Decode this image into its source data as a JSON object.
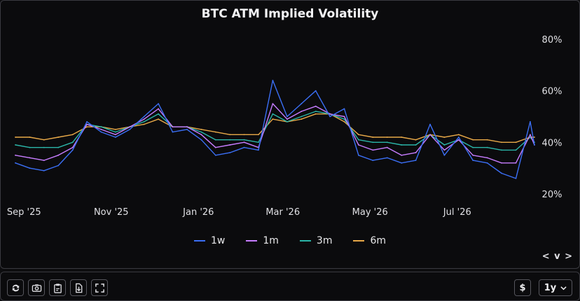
{
  "chart_data": {
    "type": "line",
    "title": "BTC ATM Implied Volatility",
    "xlabel": "",
    "ylabel": "",
    "x_range": [
      "2025-08-26",
      "2026-08-24"
    ],
    "ylim": [
      15,
      85
    ],
    "y_ticks": [
      20,
      40,
      60,
      80
    ],
    "y_tick_labels": [
      "20%",
      "40%",
      "60%",
      "80%"
    ],
    "x_ticks": [
      "2025-09-01",
      "2025-11-01",
      "2026-01-01",
      "2026-03-01",
      "2026-05-01",
      "2026-07-01"
    ],
    "x_tick_labels": [
      "Sep '25",
      "Nov '25",
      "Jan '26",
      "Mar '26",
      "May '26",
      "Jul '26"
    ],
    "legend": "bottom",
    "grid": false,
    "x": [
      "2025-08-26",
      "2025-09-05",
      "2025-09-15",
      "2025-09-25",
      "2025-10-05",
      "2025-10-15",
      "2025-10-25",
      "2025-11-04",
      "2025-11-14",
      "2025-11-24",
      "2025-12-04",
      "2025-12-14",
      "2025-12-24",
      "2026-01-03",
      "2026-01-13",
      "2026-01-23",
      "2026-02-02",
      "2026-02-12",
      "2026-02-22",
      "2026-03-04",
      "2026-03-14",
      "2026-03-24",
      "2026-04-03",
      "2026-04-13",
      "2026-04-23",
      "2026-05-03",
      "2026-05-13",
      "2026-05-23",
      "2026-06-02",
      "2026-06-12",
      "2026-06-22",
      "2026-07-02",
      "2026-07-12",
      "2026-07-22",
      "2026-08-01",
      "2026-08-11",
      "2026-08-21",
      "2026-08-24"
    ],
    "series": [
      {
        "name": "1w",
        "color": "#3b6ff5",
        "values": [
          32,
          30,
          29,
          31,
          37,
          48,
          44,
          42,
          45,
          50,
          55,
          44,
          45,
          41,
          35,
          36,
          38,
          37,
          64,
          50,
          55,
          60,
          50,
          53,
          35,
          33,
          34,
          32,
          33,
          47,
          35,
          42,
          33,
          32,
          28,
          26,
          48,
          39
        ]
      },
      {
        "name": "1m",
        "color": "#c77dff",
        "values": [
          35,
          34,
          33,
          35,
          38,
          47,
          45,
          43,
          46,
          49,
          53,
          46,
          46,
          43,
          38,
          39,
          40,
          38,
          55,
          49,
          52,
          54,
          51,
          50,
          39,
          37,
          38,
          35,
          36,
          43,
          37,
          41,
          35,
          34,
          32,
          32,
          43,
          39
        ]
      },
      {
        "name": "3m",
        "color": "#2bb5a8",
        "values": [
          39,
          38,
          38,
          38,
          40,
          47,
          46,
          44,
          46,
          48,
          51,
          46,
          46,
          44,
          41,
          41,
          41,
          40,
          51,
          48,
          50,
          52,
          51,
          49,
          41,
          40,
          40,
          39,
          39,
          43,
          39,
          41,
          38,
          38,
          37,
          37,
          42,
          40
        ]
      },
      {
        "name": "6m",
        "color": "#e8a948",
        "values": [
          42,
          42,
          41,
          42,
          43,
          46,
          46,
          45,
          46,
          47,
          49,
          46,
          46,
          45,
          44,
          43,
          43,
          43,
          49,
          48,
          49,
          51,
          51,
          48,
          43,
          42,
          42,
          42,
          41,
          43,
          42,
          43,
          41,
          41,
          40,
          40,
          42,
          42
        ]
      }
    ]
  },
  "nav_arrows": "< v >",
  "toolbar": {
    "buttons": [
      {
        "icon": "refresh-icon"
      },
      {
        "icon": "camera-icon"
      },
      {
        "icon": "clipboard-icon"
      },
      {
        "icon": "download-file-icon"
      },
      {
        "icon": "fullscreen-icon"
      }
    ],
    "currency_label": "$",
    "range_label": "1y"
  }
}
